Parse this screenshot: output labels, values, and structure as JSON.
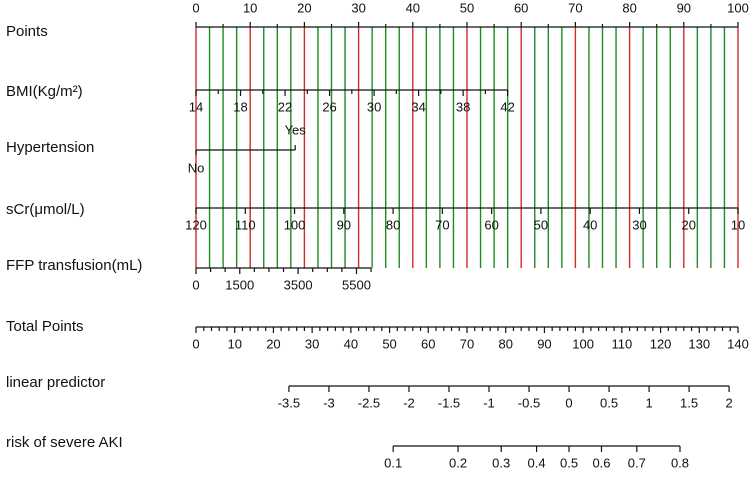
{
  "chart_data": {
    "type": "nomogram",
    "grid": true,
    "grid_colors": {
      "major": "#d42a2a",
      "minor": "#1e8c1e"
    },
    "points": {
      "label": "Points",
      "lim": [
        0,
        100
      ],
      "ticks": [
        0,
        10,
        20,
        30,
        40,
        50,
        60,
        70,
        80,
        90,
        100
      ],
      "minor_ticks": [
        5,
        15,
        25,
        35,
        45,
        55,
        65,
        75,
        85,
        95
      ],
      "grid_minor": [
        2.5,
        5,
        7.5,
        12.5,
        15,
        17.5,
        22.5,
        25,
        27.5,
        32.5,
        35,
        37.5,
        42.5,
        45,
        47.5,
        52.5,
        55,
        57.5,
        62.5,
        65,
        67.5,
        72.5,
        75,
        77.5,
        82.5,
        85,
        87.5,
        92.5,
        95,
        97.5
      ]
    },
    "variables": [
      {
        "label": "BMI(Kg/m²)",
        "kind": "continuous",
        "lim": [
          14,
          42
        ],
        "points": [
          0,
          57.5
        ],
        "ticks": [
          14,
          18,
          22,
          26,
          30,
          34,
          38,
          42
        ],
        "minor_ticks": [
          16,
          20,
          24,
          28,
          32,
          36,
          40
        ]
      },
      {
        "label": "Hypertension",
        "kind": "categorical",
        "levels": [
          "No",
          "Yes"
        ],
        "points": [
          0,
          18.3
        ]
      },
      {
        "label": "sCr(μmol/L)",
        "kind": "continuous",
        "lim": [
          120,
          10
        ],
        "points": [
          0,
          100
        ],
        "ticks": [
          120,
          110,
          100,
          90,
          80,
          70,
          60,
          50,
          40,
          30,
          20,
          10
        ],
        "minor_ticks": []
      },
      {
        "label": "FFP transfusion(mL)",
        "kind": "continuous",
        "lim": [
          0,
          6000
        ],
        "points": [
          0,
          32.3
        ],
        "ticks": [
          0,
          1500,
          3500,
          5500
        ],
        "minor_ticks": [
          500,
          1000,
          2000,
          2500,
          3000,
          4000,
          4500,
          5000,
          6000
        ]
      }
    ],
    "total_points": {
      "label": "Total Points",
      "lim": [
        0,
        140
      ],
      "ticks": [
        0,
        10,
        20,
        30,
        40,
        50,
        60,
        70,
        80,
        90,
        100,
        110,
        120,
        130,
        140
      ],
      "minor_ticks": [
        2,
        4,
        6,
        8,
        12,
        14,
        16,
        18,
        22,
        24,
        26,
        28,
        32,
        34,
        36,
        38,
        42,
        44,
        46,
        48,
        52,
        54,
        56,
        58,
        62,
        64,
        66,
        68,
        72,
        74,
        76,
        78,
        82,
        84,
        86,
        88,
        92,
        94,
        96,
        98,
        102,
        104,
        106,
        108,
        112,
        114,
        116,
        118,
        122,
        124,
        126,
        128,
        132,
        134,
        136,
        138
      ]
    },
    "linear_predictor": {
      "label": "linear predictor",
      "lim": [
        -3.5,
        2
      ],
      "total_points": [
        24.0,
        137.7
      ],
      "ticks": [
        -3.5,
        -3,
        -2.5,
        -2,
        -1.5,
        -1,
        -0.5,
        0,
        0.5,
        1,
        1.5,
        2
      ]
    },
    "risk": {
      "label": "risk of severe AKI",
      "lim": [
        0.1,
        0.8
      ],
      "ticks": [
        0.1,
        0.2,
        0.3,
        0.4,
        0.5,
        0.6,
        0.7,
        0.8
      ]
    }
  }
}
